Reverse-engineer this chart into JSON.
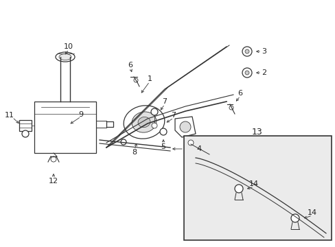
{
  "bg_color": "#ffffff",
  "figsize": [
    4.89,
    3.6
  ],
  "dpi": 100,
  "gray": "#333333",
  "lw": 0.9
}
